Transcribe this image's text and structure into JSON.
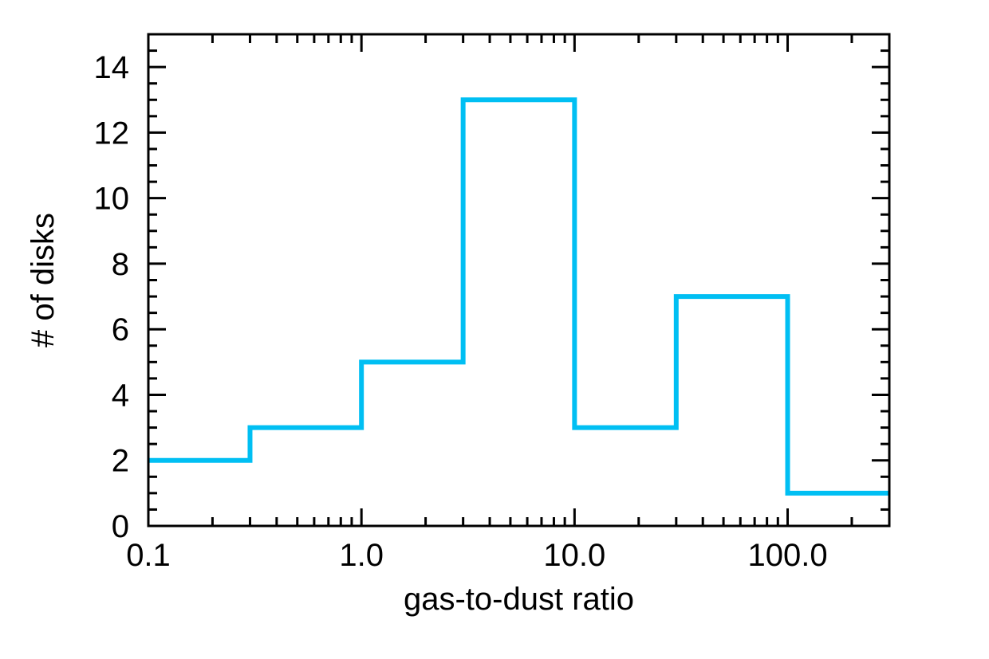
{
  "chart_data": {
    "type": "histogram",
    "xlabel": "gas-to-dust ratio",
    "ylabel": "# of disks",
    "xscale": "log",
    "xlim": [
      0.1,
      300
    ],
    "ylim": [
      0,
      15
    ],
    "x_ticks": [
      {
        "value": 0.1,
        "label": "0.1"
      },
      {
        "value": 1,
        "label": "1.0"
      },
      {
        "value": 10,
        "label": "10.0"
      },
      {
        "value": 100,
        "label": "100.0"
      }
    ],
    "y_ticks": [
      {
        "value": 0,
        "label": "0"
      },
      {
        "value": 2,
        "label": "2"
      },
      {
        "value": 4,
        "label": "4"
      },
      {
        "value": 6,
        "label": "6"
      },
      {
        "value": 8,
        "label": "8"
      },
      {
        "value": 10,
        "label": "10"
      },
      {
        "value": 12,
        "label": "12"
      },
      {
        "value": 14,
        "label": "14"
      }
    ],
    "bin_edges": [
      0.1,
      0.3,
      1,
      3,
      10,
      30,
      100,
      300
    ],
    "counts": [
      2,
      3,
      5,
      13,
      3,
      7,
      1
    ],
    "line_color": "#00bff3",
    "axis_color": "#000000",
    "grid": false,
    "legend": false
  }
}
